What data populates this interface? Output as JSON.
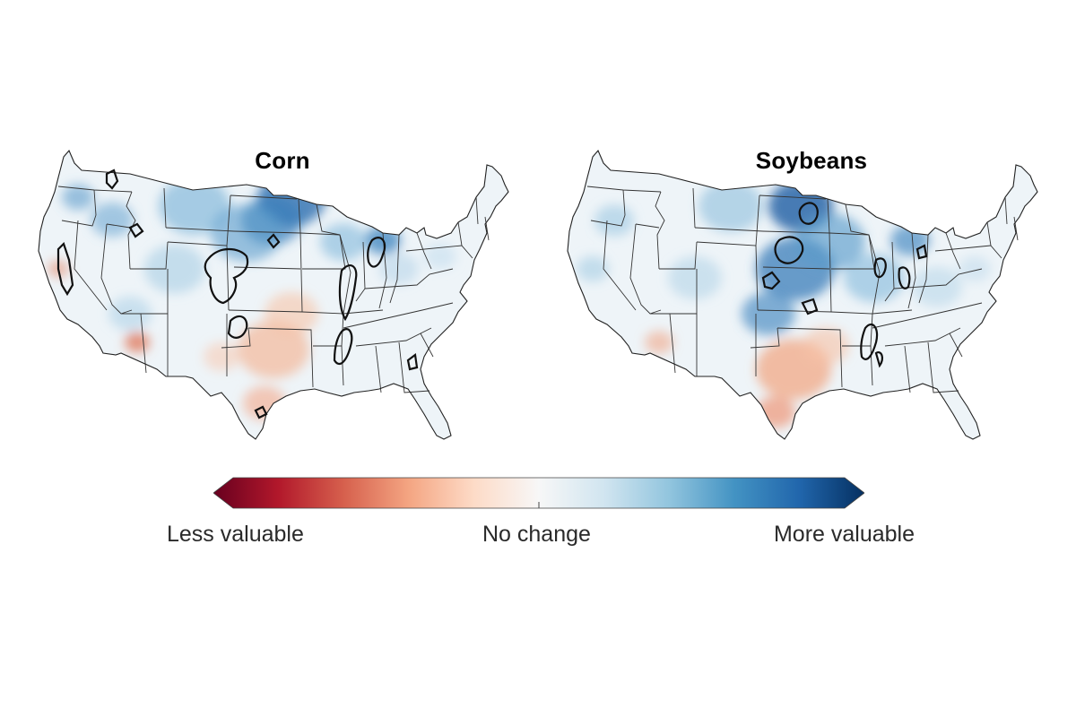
{
  "maps": [
    {
      "title": "Corn",
      "scheme": "corn"
    },
    {
      "title": "Soybeans",
      "scheme": "soy"
    }
  ],
  "legend": {
    "left_label": "Less valuable",
    "mid_label": "No change",
    "right_label": "More valuable",
    "stops": [
      "#67001f",
      "#b2182b",
      "#d6604d",
      "#f4a582",
      "#fddbc7",
      "#f7f7f7",
      "#d1e5f0",
      "#92c5de",
      "#4393c3",
      "#2166ac",
      "#053061"
    ]
  },
  "colors": {
    "outline": "#000000",
    "border": "#333333",
    "background": "#ffffff",
    "base_fill": "#eef4f8"
  }
}
